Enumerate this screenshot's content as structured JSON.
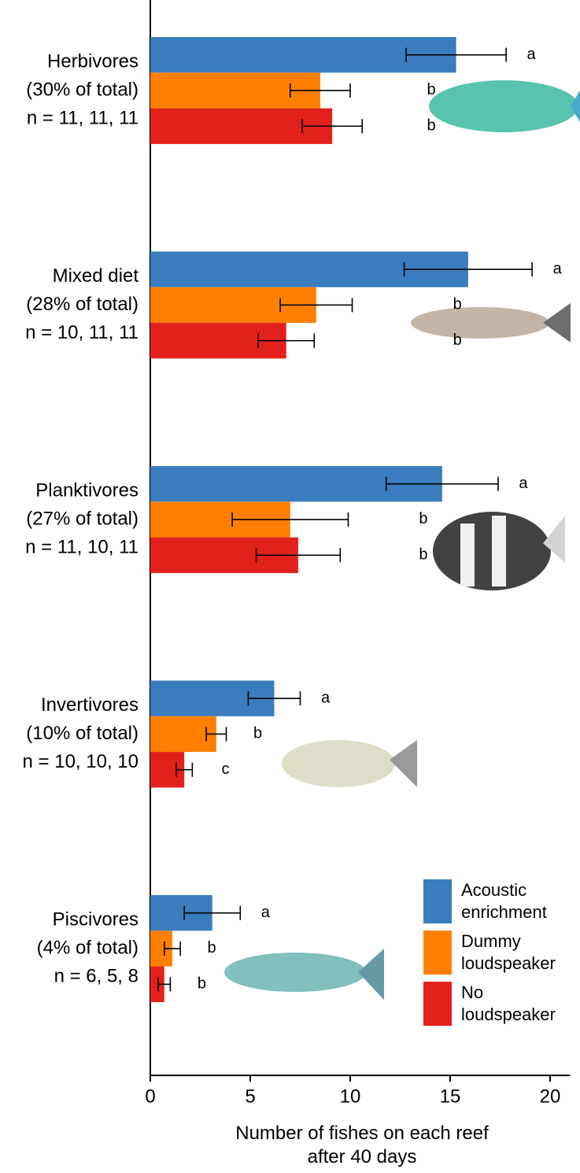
{
  "chart_data": {
    "type": "bar",
    "orientation": "horizontal",
    "categories": [
      "Herbivores",
      "Mixed diet",
      "Planktivores",
      "Invertivores",
      "Piscivores"
    ],
    "category_notes": [
      [
        "(30% of total)",
        "n = 11, 11, 11"
      ],
      [
        "(28% of total)",
        "n = 10, 11, 11"
      ],
      [
        "(27% of total)",
        "n = 11, 10, 11"
      ],
      [
        "(10% of total)",
        "n = 10, 10, 10"
      ],
      [
        "(4% of total)",
        "n = 6, 5, 8"
      ]
    ],
    "series": [
      {
        "name": "Acoustic enrichment",
        "color": "#3a7dbf",
        "values": [
          15.3,
          15.9,
          14.6,
          6.2,
          3.1
        ],
        "errors": [
          2.5,
          3.2,
          2.8,
          1.3,
          1.4
        ],
        "letters": [
          "a",
          "a",
          "a",
          "a",
          "a"
        ]
      },
      {
        "name": "Dummy loudspeaker",
        "color": "#ff8000",
        "values": [
          8.5,
          8.3,
          7.0,
          3.3,
          1.1
        ],
        "errors": [
          1.5,
          1.8,
          2.9,
          0.5,
          0.4
        ],
        "letters": [
          "b",
          "b",
          "b",
          "b",
          "b"
        ]
      },
      {
        "name": "No loudspeaker",
        "color": "#e3211c",
        "values": [
          9.1,
          6.8,
          7.4,
          1.7,
          0.7
        ],
        "errors": [
          1.5,
          1.4,
          2.1,
          0.4,
          0.3
        ],
        "letters": [
          "b",
          "b",
          "b",
          "c",
          "b"
        ]
      }
    ],
    "xlabel": "Number of fishes on each reef after 40 days",
    "xlim": [
      0,
      21
    ],
    "xticks": [
      0,
      5,
      10,
      15,
      20
    ],
    "grid": false,
    "legend": "lower right"
  }
}
